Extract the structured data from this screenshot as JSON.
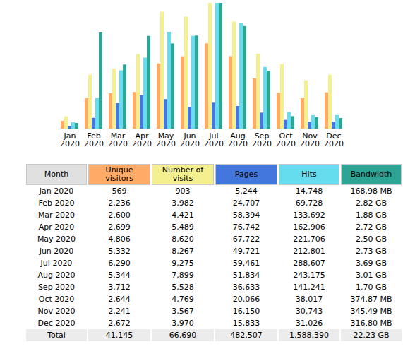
{
  "chart_data": [
    {
      "type": "bar",
      "categories": [
        "Jan\n2020",
        "Feb\n2020",
        "Mar\n2020",
        "Apr\n2020",
        "May\n2020",
        "Jun\n2020",
        "Jul\n2020",
        "Aug\n2020",
        "Sep\n2020",
        "Oct\n2020",
        "Nov\n2020",
        "Dec\n2020"
      ],
      "series": [
        {
          "name": "Unique visitors",
          "color": "#FFAA66",
          "values": [
            569,
            2236,
            2600,
            2699,
            4806,
            5332,
            6290,
            5344,
            3712,
            2644,
            2241,
            2672
          ]
        },
        {
          "name": "Number of visits",
          "color": "#F4F090",
          "values": [
            903,
            3982,
            4421,
            5489,
            8620,
            8267,
            9275,
            7899,
            5528,
            4769,
            3567,
            3970
          ]
        }
      ],
      "ylim": [
        0,
        9275
      ],
      "tick_labels": "x"
    },
    {
      "type": "bar",
      "categories": [
        "Jan\n2020",
        "Feb\n2020",
        "Mar\n2020",
        "Apr\n2020",
        "May\n2020",
        "Jun\n2020",
        "Jul\n2020",
        "Aug\n2020",
        "Sep\n2020",
        "Oct\n2020",
        "Nov\n2020",
        "Dec\n2020"
      ],
      "series": [
        {
          "name": "Pages",
          "color": "#4477DD",
          "values": [
            5244,
            24707,
            58394,
            76742,
            67722,
            49721,
            59461,
            51834,
            36633,
            20066,
            16150,
            15833
          ]
        },
        {
          "name": "Hits",
          "color": "#66DDEE",
          "values": [
            14748,
            69728,
            133692,
            162906,
            221706,
            212801,
            288607,
            243175,
            141241,
            38017,
            30743,
            31026
          ]
        }
      ],
      "ylim": [
        0,
        288607
      ],
      "tick_labels": false
    },
    {
      "type": "bar",
      "categories": [
        "Jan\n2020",
        "Feb\n2020",
        "Mar\n2020",
        "Apr\n2020",
        "May\n2020",
        "Jun\n2020",
        "Jul\n2020",
        "Aug\n2020",
        "Sep\n2020",
        "Oct\n2020",
        "Nov\n2020",
        "Dec\n2020"
      ],
      "series": [
        {
          "name": "Bandwidth",
          "color": "#2EA495",
          "values": [
            0.165,
            2.82,
            1.88,
            2.72,
            2.5,
            2.73,
            3.69,
            3.01,
            1.7,
            0.366,
            0.337,
            0.309
          ]
        }
      ],
      "ylim": [
        0,
        3.69
      ],
      "tick_labels": false
    }
  ],
  "table": {
    "header": [
      "Month",
      "Unique visitors",
      "Number of visits",
      "Pages",
      "Hits",
      "Bandwidth"
    ],
    "header_colors": [
      "#e0e0e0",
      "#FFAA66",
      "#F4F090",
      "#4477DD",
      "#66DDEE",
      "#2EA495"
    ],
    "rows": [
      [
        "Jan 2020",
        "569",
        "903",
        "5,244",
        "14,748",
        "168.98 MB"
      ],
      [
        "Feb 2020",
        "2,236",
        "3,982",
        "24,707",
        "69,728",
        "2.82 GB"
      ],
      [
        "Mar 2020",
        "2,600",
        "4,421",
        "58,394",
        "133,692",
        "1.88 GB"
      ],
      [
        "Apr 2020",
        "2,699",
        "5,489",
        "76,742",
        "162,906",
        "2.72 GB"
      ],
      [
        "May 2020",
        "4,806",
        "8,620",
        "67,722",
        "221,706",
        "2.50 GB"
      ],
      [
        "Jun 2020",
        "5,332",
        "8,267",
        "49,721",
        "212,801",
        "2.73 GB"
      ],
      [
        "Jul 2020",
        "6,290",
        "9,275",
        "59,461",
        "288,607",
        "3.69 GB"
      ],
      [
        "Aug 2020",
        "5,344",
        "7,899",
        "51,834",
        "243,175",
        "3.01 GB"
      ],
      [
        "Sep 2020",
        "3,712",
        "5,528",
        "36,633",
        "141,241",
        "1.70 GB"
      ],
      [
        "Oct 2020",
        "2,644",
        "4,769",
        "20,066",
        "38,017",
        "374.87 MB"
      ],
      [
        "Nov 2020",
        "2,241",
        "3,567",
        "16,150",
        "30,743",
        "345.49 MB"
      ],
      [
        "Dec 2020",
        "2,672",
        "3,970",
        "15,833",
        "31,026",
        "316.80 MB"
      ]
    ],
    "total": [
      "Total",
      "41,145",
      "66,690",
      "482,507",
      "1,588,390",
      "22.23 GB"
    ]
  }
}
